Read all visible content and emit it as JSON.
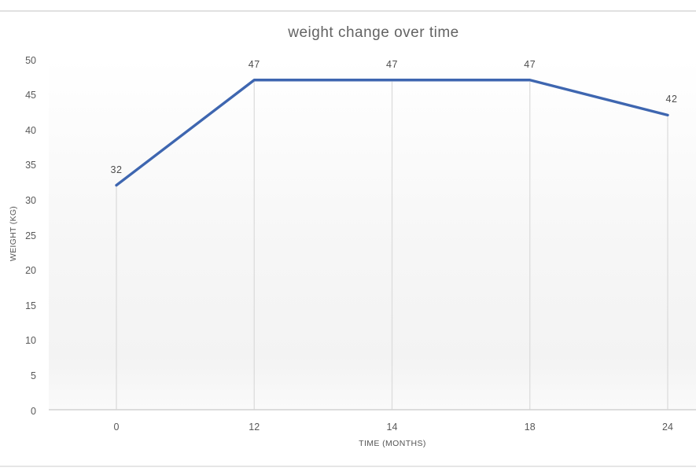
{
  "frame": {
    "top_rule_color": "#e1e1e1",
    "bottom_rule_color": "#e6e6e6",
    "background": "#ffffff"
  },
  "chart_data": {
    "type": "line",
    "title": "weight change over time",
    "xlabel": "TIME (MONTHS)",
    "ylabel": "WEIGHT (KG)",
    "categories": [
      "0",
      "12",
      "14",
      "18",
      "24"
    ],
    "values": [
      32,
      47,
      47,
      47,
      42
    ],
    "data_labels": [
      "32",
      "47",
      "47",
      "47",
      "42"
    ],
    "y_ticks": [
      "0",
      "5",
      "10",
      "15",
      "20",
      "25",
      "30",
      "35",
      "40",
      "45",
      "50"
    ],
    "ylim": [
      0,
      50
    ],
    "legend": "none",
    "grid": "vertical drop lines from points to x-axis only",
    "line_color": "#3e66b0",
    "drop_line_color": "#dcdcdc",
    "axis_line_color": "#d2d2d2",
    "tick_text_color": "#595959",
    "data_label_color": "#4d4d4d",
    "title_color": "#636363",
    "axis_title_color": "#555555"
  }
}
